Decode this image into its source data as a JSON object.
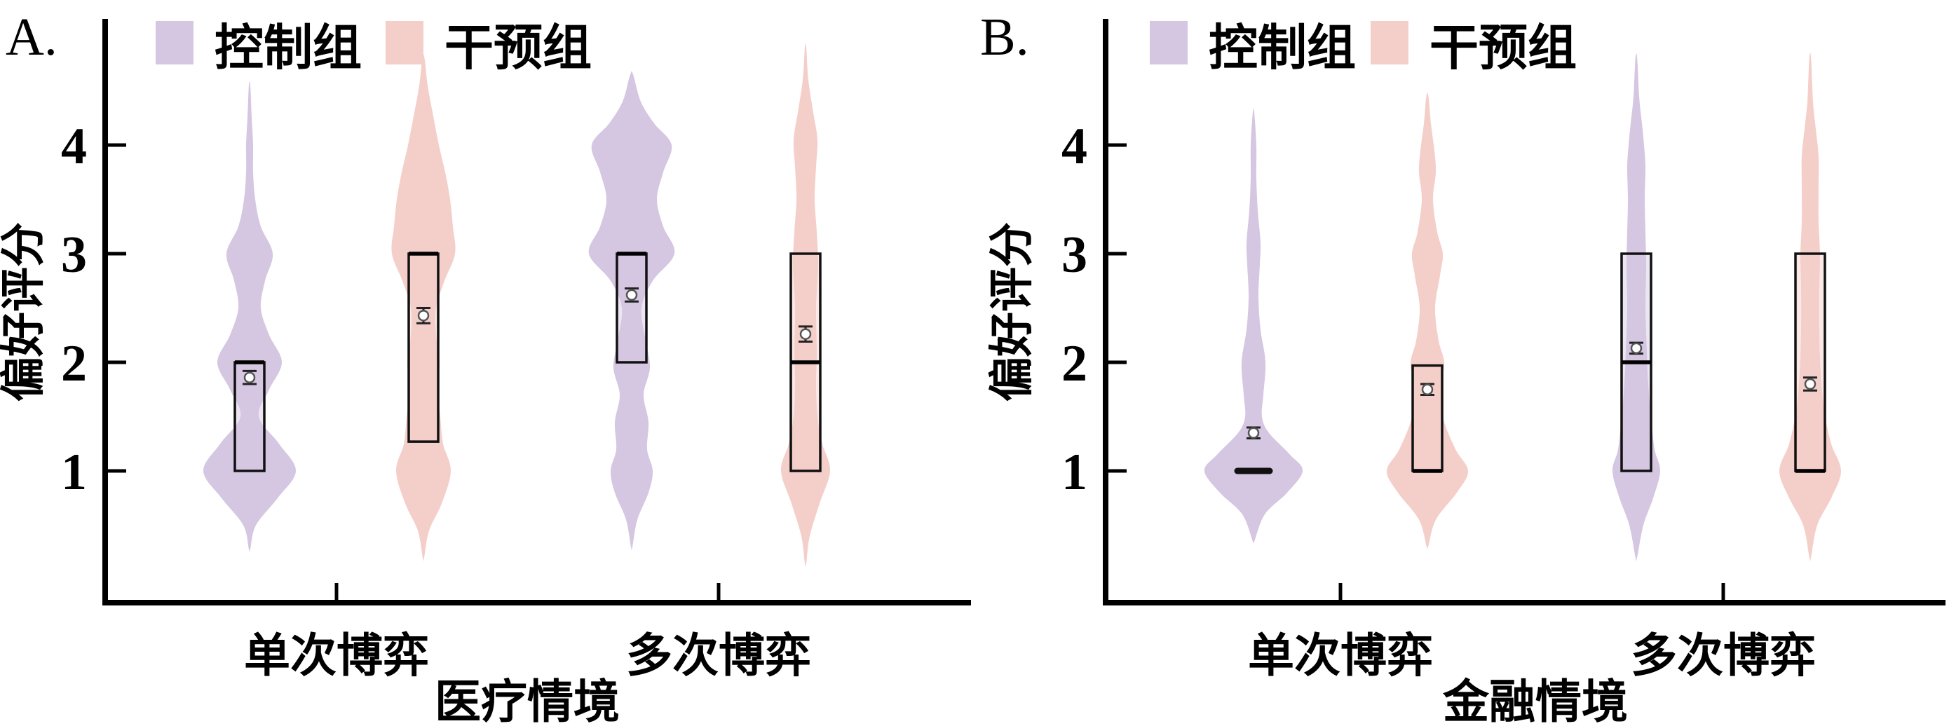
{
  "style": {
    "control_color": "#d5c6e2",
    "intervention_color": "#f4cfca",
    "axis_color": "#000000",
    "box_fill_opacity": 0.45,
    "mean_marker": "white dot with gray outline and error bars",
    "median_marker": "thick black horizontal line"
  },
  "chart_data": [
    {
      "type": "violin",
      "panel_label": "A.",
      "xlabel": "医疗情境",
      "ylabel": "偏好评分",
      "y_ticks": [
        1,
        2,
        3,
        4
      ],
      "categories": [
        "单次博弈",
        "多次博弈"
      ],
      "legend": [
        {
          "label": "控制组",
          "series": "control"
        },
        {
          "label": "干预组",
          "series": "intervention"
        }
      ],
      "legend_position": "top-left-inside",
      "series": [
        {
          "name": "控制组",
          "series": "control",
          "category": "单次博弈",
          "stats": {
            "q1": 1.0,
            "median": 2.0,
            "q3": 2.0,
            "mean": 1.86,
            "se": 0.06
          },
          "density": [
            [
              0.28,
              1
            ],
            [
              0.5,
              9
            ],
            [
              0.75,
              40
            ],
            [
              1,
              66
            ],
            [
              1.25,
              42
            ],
            [
              1.5,
              13
            ],
            [
              1.75,
              28
            ],
            [
              2,
              46
            ],
            [
              2.25,
              28
            ],
            [
              2.5,
              16
            ],
            [
              2.75,
              22
            ],
            [
              3,
              33
            ],
            [
              3.25,
              16
            ],
            [
              3.5,
              8
            ],
            [
              3.75,
              5
            ],
            [
              4,
              5
            ],
            [
              4.25,
              3
            ],
            [
              4.55,
              1
            ]
          ]
        },
        {
          "name": "干预组",
          "series": "intervention",
          "category": "单次博弈",
          "stats": {
            "q1": 1.27,
            "median": 3.0,
            "q3": 3.0,
            "mean": 2.43,
            "se": 0.07
          },
          "density": [
            [
              0.2,
              1
            ],
            [
              0.45,
              8
            ],
            [
              0.7,
              26
            ],
            [
              1,
              39
            ],
            [
              1.25,
              28
            ],
            [
              1.5,
              24
            ],
            [
              1.75,
              20
            ],
            [
              2,
              23
            ],
            [
              2.25,
              18
            ],
            [
              2.5,
              18
            ],
            [
              2.75,
              30
            ],
            [
              3,
              45
            ],
            [
              3.25,
              42
            ],
            [
              3.5,
              38
            ],
            [
              3.75,
              31
            ],
            [
              4,
              22
            ],
            [
              4.3,
              13
            ],
            [
              4.55,
              6
            ],
            [
              4.8,
              1.5
            ]
          ]
        },
        {
          "name": "控制组",
          "series": "control",
          "category": "多次博弈",
          "stats": {
            "q1": 2.0,
            "median": 3.0,
            "q3": 3.0,
            "mean": 2.62,
            "se": 0.06
          },
          "density": [
            [
              0.3,
              1
            ],
            [
              0.55,
              8
            ],
            [
              0.8,
              24
            ],
            [
              1,
              30
            ],
            [
              1.2,
              22
            ],
            [
              1.45,
              24
            ],
            [
              1.7,
              17
            ],
            [
              1.95,
              26
            ],
            [
              2.2,
              20
            ],
            [
              2.5,
              14
            ],
            [
              2.75,
              30
            ],
            [
              3,
              61
            ],
            [
              3.25,
              45
            ],
            [
              3.5,
              36
            ],
            [
              3.75,
              45
            ],
            [
              4,
              57
            ],
            [
              4.2,
              32
            ],
            [
              4.4,
              13
            ],
            [
              4.65,
              2
            ]
          ]
        },
        {
          "name": "干预组",
          "series": "intervention",
          "category": "多次博弈",
          "stats": {
            "q1": 1.0,
            "median": 2.0,
            "q3": 3.0,
            "mean": 2.26,
            "se": 0.07
          },
          "density": [
            [
              0.15,
              1
            ],
            [
              0.4,
              6
            ],
            [
              0.7,
              20
            ],
            [
              1,
              35
            ],
            [
              1.25,
              24
            ],
            [
              1.5,
              17
            ],
            [
              1.8,
              15
            ],
            [
              2.1,
              16
            ],
            [
              2.5,
              15
            ],
            [
              2.9,
              18
            ],
            [
              3.2,
              16
            ],
            [
              3.5,
              13
            ],
            [
              3.8,
              15
            ],
            [
              4.05,
              17
            ],
            [
              4.3,
              11
            ],
            [
              4.6,
              4
            ],
            [
              4.9,
              1
            ]
          ]
        }
      ]
    },
    {
      "type": "violin",
      "panel_label": "B.",
      "xlabel": "金融情境",
      "ylabel": "偏好评分",
      "y_ticks": [
        1,
        2,
        3,
        4
      ],
      "categories": [
        "单次博弈",
        "多次博弈"
      ],
      "legend": [
        {
          "label": "控制组",
          "series": "control"
        },
        {
          "label": "干预组",
          "series": "intervention"
        }
      ],
      "legend_position": "top-left-inside",
      "series": [
        {
          "name": "控制组",
          "series": "control",
          "category": "单次博弈",
          "stats": {
            "q1": 1.0,
            "median": 1.0,
            "q3": 1.0,
            "mean": 1.35,
            "se": 0.05
          },
          "density": [
            [
              0.35,
              1
            ],
            [
              0.6,
              16
            ],
            [
              0.8,
              48
            ],
            [
              1,
              70
            ],
            [
              1.15,
              52
            ],
            [
              1.35,
              22
            ],
            [
              1.5,
              12
            ],
            [
              1.7,
              14
            ],
            [
              2,
              17
            ],
            [
              2.3,
              10
            ],
            [
              2.6,
              7
            ],
            [
              2.9,
              9
            ],
            [
              3.1,
              10
            ],
            [
              3.4,
              6
            ],
            [
              3.7,
              4
            ],
            [
              4,
              4
            ],
            [
              4.3,
              1
            ]
          ]
        },
        {
          "name": "干预组",
          "series": "intervention",
          "category": "单次博弈",
          "stats": {
            "q1": 1.0,
            "median": 1.0,
            "q3": 1.97,
            "mean": 1.75,
            "se": 0.05
          },
          "density": [
            [
              0.3,
              1
            ],
            [
              0.55,
              12
            ],
            [
              0.8,
              42
            ],
            [
              1,
              58
            ],
            [
              1.2,
              40
            ],
            [
              1.5,
              22
            ],
            [
              1.8,
              20
            ],
            [
              2,
              24
            ],
            [
              2.2,
              16
            ],
            [
              2.5,
              11
            ],
            [
              2.8,
              18
            ],
            [
              3,
              22
            ],
            [
              3.2,
              14
            ],
            [
              3.5,
              8
            ],
            [
              3.75,
              12
            ],
            [
              3.95,
              10
            ],
            [
              4.2,
              5
            ],
            [
              4.45,
              1.5
            ]
          ]
        },
        {
          "name": "控制组",
          "series": "control",
          "category": "多次博弈",
          "stats": {
            "q1": 1.0,
            "median": 2.0,
            "q3": 3.0,
            "mean": 2.13,
            "se": 0.05
          },
          "density": [
            [
              0.2,
              1
            ],
            [
              0.5,
              10
            ],
            [
              0.75,
              24
            ],
            [
              1,
              34
            ],
            [
              1.2,
              26
            ],
            [
              1.5,
              21
            ],
            [
              1.8,
              17
            ],
            [
              2.1,
              15
            ],
            [
              2.5,
              13
            ],
            [
              2.9,
              14
            ],
            [
              3.2,
              13
            ],
            [
              3.5,
              12
            ],
            [
              3.8,
              13
            ],
            [
              4,
              11
            ],
            [
              4.2,
              8
            ],
            [
              4.45,
              4
            ],
            [
              4.8,
              1.2
            ]
          ]
        },
        {
          "name": "干预组",
          "series": "intervention",
          "category": "多次博弈",
          "stats": {
            "q1": 1.0,
            "median": 1.0,
            "q3": 3.0,
            "mean": 1.8,
            "se": 0.06
          },
          "density": [
            [
              0.2,
              1
            ],
            [
              0.5,
              10
            ],
            [
              0.75,
              30
            ],
            [
              1,
              44
            ],
            [
              1.25,
              30
            ],
            [
              1.55,
              20
            ],
            [
              1.9,
              15
            ],
            [
              2.3,
              13
            ],
            [
              2.7,
              13
            ],
            [
              3,
              14
            ],
            [
              3.3,
              12
            ],
            [
              3.6,
              12
            ],
            [
              3.9,
              12
            ],
            [
              4.15,
              8
            ],
            [
              4.4,
              4
            ],
            [
              4.8,
              1.2
            ]
          ]
        }
      ]
    }
  ]
}
